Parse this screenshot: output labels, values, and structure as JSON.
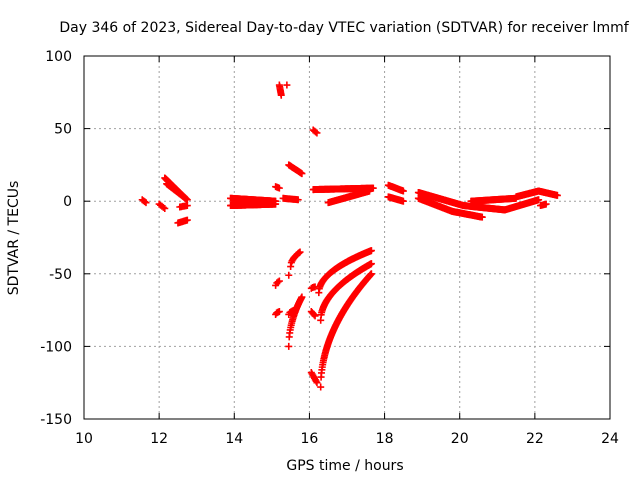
{
  "chart_data": {
    "type": "scatter",
    "title": "Day 346 of 2023, Sidereal Day-to-day VTEC variation (SDTVAR) for receiver lmmf",
    "xlabel": "GPS time / hours",
    "ylabel": "SDTVAR / TECUs",
    "xlim": [
      10,
      24
    ],
    "ylim": [
      -150,
      100
    ],
    "xticks": [
      10,
      12,
      14,
      16,
      18,
      20,
      22,
      24
    ],
    "yticks": [
      -150,
      -100,
      -50,
      0,
      50,
      100
    ],
    "xtick_labels": [
      "10",
      "12",
      "14",
      "16",
      "18",
      "20",
      "22",
      "24"
    ],
    "ytick_labels": [
      "-150",
      "-100",
      "-50",
      "0",
      "50",
      "100"
    ],
    "grid": true,
    "marker": "+",
    "color": "#ff0000",
    "segments": [
      {
        "x0": 11.55,
        "y0": 1,
        "x1": 11.65,
        "y1": -1,
        "n": 4
      },
      {
        "x0": 12.0,
        "y0": -2,
        "x1": 12.15,
        "y1": -5,
        "n": 5
      },
      {
        "x0": 12.15,
        "y0": 16,
        "x1": 12.7,
        "y1": 2,
        "n": 40
      },
      {
        "x0": 12.2,
        "y0": 12,
        "x1": 12.75,
        "y1": 1,
        "n": 30
      },
      {
        "x0": 12.55,
        "y0": -4,
        "x1": 12.75,
        "y1": -3,
        "n": 6
      },
      {
        "x0": 12.5,
        "y0": -15,
        "x1": 12.75,
        "y1": -13,
        "n": 10
      },
      {
        "x0": 13.9,
        "y0": 2,
        "x1": 15.1,
        "y1": 0,
        "n": 90
      },
      {
        "x0": 13.9,
        "y0": -3,
        "x1": 15.1,
        "y1": -2,
        "n": 90
      },
      {
        "x0": 15.1,
        "y0": 10,
        "x1": 15.2,
        "y1": 9,
        "n": 4
      },
      {
        "x0": 15.3,
        "y0": 2,
        "x1": 15.7,
        "y1": 1,
        "n": 15
      },
      {
        "x0": 15.2,
        "y0": 80,
        "x1": 15.25,
        "y1": 73,
        "n": 8
      },
      {
        "x0": 15.4,
        "y0": 80,
        "x1": 15.4,
        "y1": 80,
        "n": 1
      },
      {
        "x0": 15.45,
        "y0": 25,
        "x1": 15.8,
        "y1": 19,
        "n": 18
      },
      {
        "x0": 16.1,
        "y0": 49,
        "x1": 16.2,
        "y1": 47,
        "n": 4
      },
      {
        "x0": 16.1,
        "y0": 8,
        "x1": 17.7,
        "y1": 9,
        "n": 100
      },
      {
        "x0": 16.5,
        "y0": -1,
        "x1": 17.6,
        "y1": 7,
        "n": 70
      },
      {
        "x0": 18.1,
        "y0": 11,
        "x1": 18.5,
        "y1": 7,
        "n": 25
      },
      {
        "x0": 18.1,
        "y0": 3,
        "x1": 18.5,
        "y1": 0,
        "n": 25
      },
      {
        "x0": 18.9,
        "y0": 6,
        "x1": 20.1,
        "y1": -3,
        "n": 90
      },
      {
        "x0": 18.9,
        "y0": 2,
        "x1": 19.8,
        "y1": -7,
        "n": 60
      },
      {
        "x0": 19.8,
        "y0": -7,
        "x1": 20.6,
        "y1": -11,
        "n": 50
      },
      {
        "x0": 20.1,
        "y0": -3,
        "x1": 21.2,
        "y1": -6,
        "n": 70
      },
      {
        "x0": 21.2,
        "y0": -6,
        "x1": 22.1,
        "y1": 1,
        "n": 55
      },
      {
        "x0": 20.3,
        "y0": 0,
        "x1": 21.5,
        "y1": 2,
        "n": 70
      },
      {
        "x0": 21.5,
        "y0": 3,
        "x1": 22.1,
        "y1": 7,
        "n": 40
      },
      {
        "x0": 22.1,
        "y0": 7,
        "x1": 22.6,
        "y1": 4,
        "n": 30
      },
      {
        "x0": 22.15,
        "y0": -3,
        "x1": 22.3,
        "y1": -2,
        "n": 6
      },
      {
        "x0": 15.45,
        "y0": -51,
        "x1": 15.45,
        "y1": -51,
        "n": 1
      },
      {
        "x0": 15.1,
        "y0": -58,
        "x1": 15.2,
        "y1": -55,
        "n": 4
      },
      {
        "x0": 15.5,
        "y0": -45,
        "x1": 15.75,
        "y1": -35,
        "n": 14
      },
      {
        "x0": 15.1,
        "y0": -78,
        "x1": 15.2,
        "y1": -76,
        "n": 5
      },
      {
        "x0": 15.45,
        "y0": -100,
        "x1": 15.8,
        "y1": -66,
        "n": 28
      },
      {
        "x0": 15.45,
        "y0": -78,
        "x1": 15.6,
        "y1": -75,
        "n": 6
      },
      {
        "x0": 16.05,
        "y0": -76,
        "x1": 16.15,
        "y1": -79,
        "n": 5
      },
      {
        "x0": 16.05,
        "y0": -60,
        "x1": 16.15,
        "y1": -59,
        "n": 4
      },
      {
        "x0": 16.25,
        "y0": -63,
        "x1": 17.65,
        "y1": -34,
        "n": 110
      },
      {
        "x0": 16.3,
        "y0": -82,
        "x1": 17.65,
        "y1": -43,
        "n": 110
      },
      {
        "x0": 16.3,
        "y0": -128,
        "x1": 17.65,
        "y1": -50,
        "n": 130
      },
      {
        "x0": 16.05,
        "y0": -118,
        "x1": 16.2,
        "y1": -125,
        "n": 8
      }
    ]
  }
}
